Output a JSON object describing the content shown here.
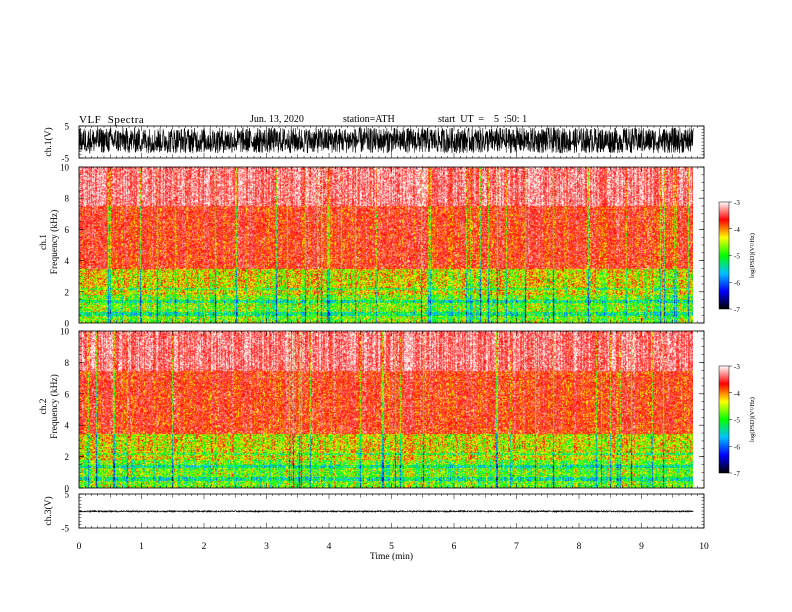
{
  "header": {
    "title": "VLF  Spectra",
    "date": "Jun. 13, 2020",
    "station": "station=ATH",
    "start": "start  UT  =    5  :50: 1"
  },
  "chart_data": [
    {
      "type": "line",
      "panel": "ch1-waveform",
      "ylabel": "ch.1(V)",
      "ytick_labels": [
        "5",
        "-5"
      ],
      "ylim": [
        -5,
        5
      ],
      "xlim": [
        0,
        10
      ],
      "x_extent": [
        0,
        9.83
      ],
      "series": [
        {
          "values_description_free": true,
          "amplitude_range": [
            -3.5,
            4.5
          ],
          "mean": 0
        }
      ]
    },
    {
      "type": "heatmap",
      "panel": "ch1-spectrogram",
      "ylabel": "ch.1\nFrequency (kHz)",
      "ylabel_lines": [
        "ch.1",
        "Frequency (kHz)"
      ],
      "ytick_labels": [
        "0",
        "2",
        "4",
        "6",
        "8",
        "10"
      ],
      "ylim": [
        0,
        10
      ],
      "xlim": [
        0,
        10
      ],
      "x_extent": [
        0,
        9.83
      ],
      "colorbar": {
        "label": "log(PSD)(V²/Hz)",
        "range": [
          -7,
          -3
        ],
        "tick_labels": [
          "-3",
          "-4",
          "-5",
          "-6",
          "-7"
        ]
      }
    },
    {
      "type": "heatmap",
      "panel": "ch2-spectrogram",
      "ylabel": "ch.2\nFrequency (kHz)",
      "ylabel_lines": [
        "ch.2",
        "Frequency (kHz)"
      ],
      "ytick_labels": [
        "0",
        "2",
        "4",
        "6",
        "8",
        "10"
      ],
      "ylim": [
        0,
        10
      ],
      "xlim": [
        0,
        10
      ],
      "x_extent": [
        0,
        9.83
      ],
      "colorbar": {
        "label": "log(PSD)(V²/Hz)",
        "range": [
          -7,
          -3
        ],
        "tick_labels": [
          "-3",
          "-4",
          "-5",
          "-6",
          "-7"
        ]
      }
    },
    {
      "type": "line",
      "panel": "ch3-waveform",
      "ylabel": "ch.3(V)",
      "ytick_labels": [
        "5",
        "-5"
      ],
      "ylim": [
        -5,
        5
      ],
      "xlim": [
        0,
        10
      ],
      "x_extent": [
        0,
        9.83
      ],
      "xlabel": "Time  (min)",
      "xtick_labels": [
        "0",
        "1",
        "2",
        "3",
        "4",
        "5",
        "6",
        "7",
        "8",
        "9",
        "10"
      ],
      "series": [
        {
          "amplitude_range": [
            -0.2,
            0.2
          ],
          "mean": -0.1
        }
      ]
    }
  ],
  "colors": {
    "colorbar_stops": [
      "#ffffff",
      "#ff0000",
      "#ffff00",
      "#00ff00",
      "#00c0ff",
      "#0000ff",
      "#000000"
    ],
    "waveform": "#000000",
    "axes": "#000000"
  }
}
